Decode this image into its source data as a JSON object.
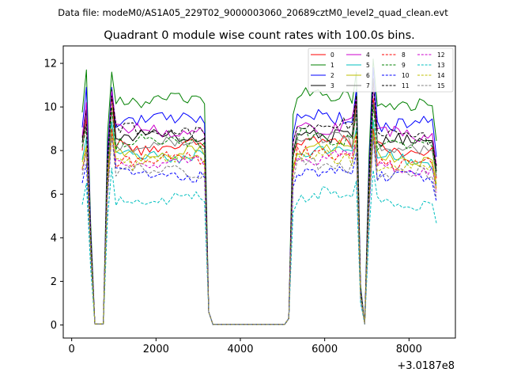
{
  "figure": {
    "suptitle": "Data file: modeM0/AS1A05_229T02_9000003060_20689cztM0_level2_quad_clean.evt",
    "x_offset_label": "+3.0187e8"
  },
  "chart_data": {
    "type": "line",
    "title": "Quadrant 0 module wise count rates with 100.0s bins.",
    "xlabel": "",
    "ylabel": "",
    "xlim": [
      -200,
      9100
    ],
    "ylim": [
      -0.6,
      12.8
    ],
    "x_ticks": [
      0,
      2000,
      4000,
      6000,
      8000
    ],
    "x_tick_labels": [
      "0",
      "2000",
      "4000",
      "6000",
      "8000"
    ],
    "y_ticks": [
      0,
      2,
      4,
      6,
      8,
      10,
      12
    ],
    "y_tick_labels": [
      "0",
      "2",
      "4",
      "6",
      "8",
      "10",
      "12"
    ],
    "legend_position": "top-right",
    "legend_columns": 4,
    "x": [
      250,
      350,
      450,
      550,
      650,
      750,
      850,
      950,
      1050,
      1150,
      1250,
      1350,
      1450,
      1550,
      1650,
      1750,
      1850,
      1950,
      2050,
      2150,
      2250,
      2350,
      2450,
      2550,
      2650,
      2750,
      2850,
      2950,
      3050,
      3150,
      3250,
      3350,
      3450,
      3550,
      3650,
      3750,
      3850,
      3950,
      4050,
      4150,
      4250,
      4350,
      4450,
      4550,
      4650,
      4750,
      4850,
      4950,
      5050,
      5150,
      5250,
      5350,
      5450,
      5550,
      5650,
      5750,
      5850,
      5950,
      6050,
      6150,
      6250,
      6350,
      6450,
      6550,
      6650,
      6750,
      6850,
      6950,
      7050,
      7150,
      7250,
      7350,
      7450,
      7550,
      7650,
      7750,
      7850,
      7950,
      8050,
      8150,
      8250,
      8350,
      8450,
      8550,
      8650
    ],
    "series": [
      {
        "name": "0",
        "color": "#ff0000",
        "dash": "solid",
        "level": 8.2,
        "peaks": [
          9.5,
          10.6,
          10.1,
          10.4
        ]
      },
      {
        "name": "1",
        "color": "#008000",
        "dash": "solid",
        "level": 10.3,
        "peaks": [
          11.7,
          11.6,
          11.6,
          12.2
        ]
      },
      {
        "name": "2",
        "color": "#0000ff",
        "dash": "solid",
        "level": 9.4,
        "peaks": [
          10.9,
          10.9,
          10.8,
          11.8
        ]
      },
      {
        "name": "3",
        "color": "#000000",
        "dash": "solid",
        "level": 8.6,
        "peaks": [
          9.9,
          10.8,
          10.5,
          11.3
        ]
      },
      {
        "name": "4",
        "color": "#cc00cc",
        "dash": "solid",
        "level": 8.9,
        "peaks": [
          10.2,
          10.7,
          10.4,
          11.0
        ]
      },
      {
        "name": "5",
        "color": "#00bfbf",
        "dash": "solid",
        "level": 7.8,
        "peaks": [
          8.6,
          9.3,
          9.0,
          9.4
        ]
      },
      {
        "name": "6",
        "color": "#bfbf00",
        "dash": "solid",
        "level": 7.9,
        "peaks": [
          8.2,
          9.0,
          8.8,
          9.0
        ]
      },
      {
        "name": "7",
        "color": "#808080",
        "dash": "solid",
        "level": 8.3,
        "peaks": [
          9.2,
          9.8,
          9.9,
          10.2
        ]
      },
      {
        "name": "8",
        "color": "#ff0000",
        "dash": "dashed",
        "level": 7.6,
        "peaks": [
          8.0,
          9.0,
          8.7,
          9.0
        ]
      },
      {
        "name": "9",
        "color": "#008000",
        "dash": "dashed",
        "level": 8.4,
        "peaks": [
          9.0,
          10.0,
          9.7,
          10.1
        ]
      },
      {
        "name": "10",
        "color": "#0000ff",
        "dash": "dashed",
        "level": 6.9,
        "peaks": [
          7.4,
          8.7,
          7.9,
          8.6
        ]
      },
      {
        "name": "11",
        "color": "#000000",
        "dash": "dashed",
        "level": 8.9,
        "peaks": [
          9.2,
          10.5,
          10.5,
          11.1
        ]
      },
      {
        "name": "12",
        "color": "#cc00cc",
        "dash": "dashed",
        "level": 7.4,
        "peaks": [
          8.0,
          8.7,
          8.3,
          8.8
        ]
      },
      {
        "name": "13",
        "color": "#00bfbf",
        "dash": "dashed",
        "level": 5.7,
        "peaks": [
          6.5,
          7.2,
          6.6,
          7.1
        ]
      },
      {
        "name": "14",
        "color": "#bfbf00",
        "dash": "dashed",
        "level": 7.5,
        "peaks": [
          8.1,
          8.7,
          8.4,
          8.8
        ]
      },
      {
        "name": "15",
        "color": "#808080",
        "dash": "dashed",
        "level": 7.1,
        "peaks": [
          8.0,
          8.7,
          8.3,
          8.7
        ]
      }
    ]
  }
}
